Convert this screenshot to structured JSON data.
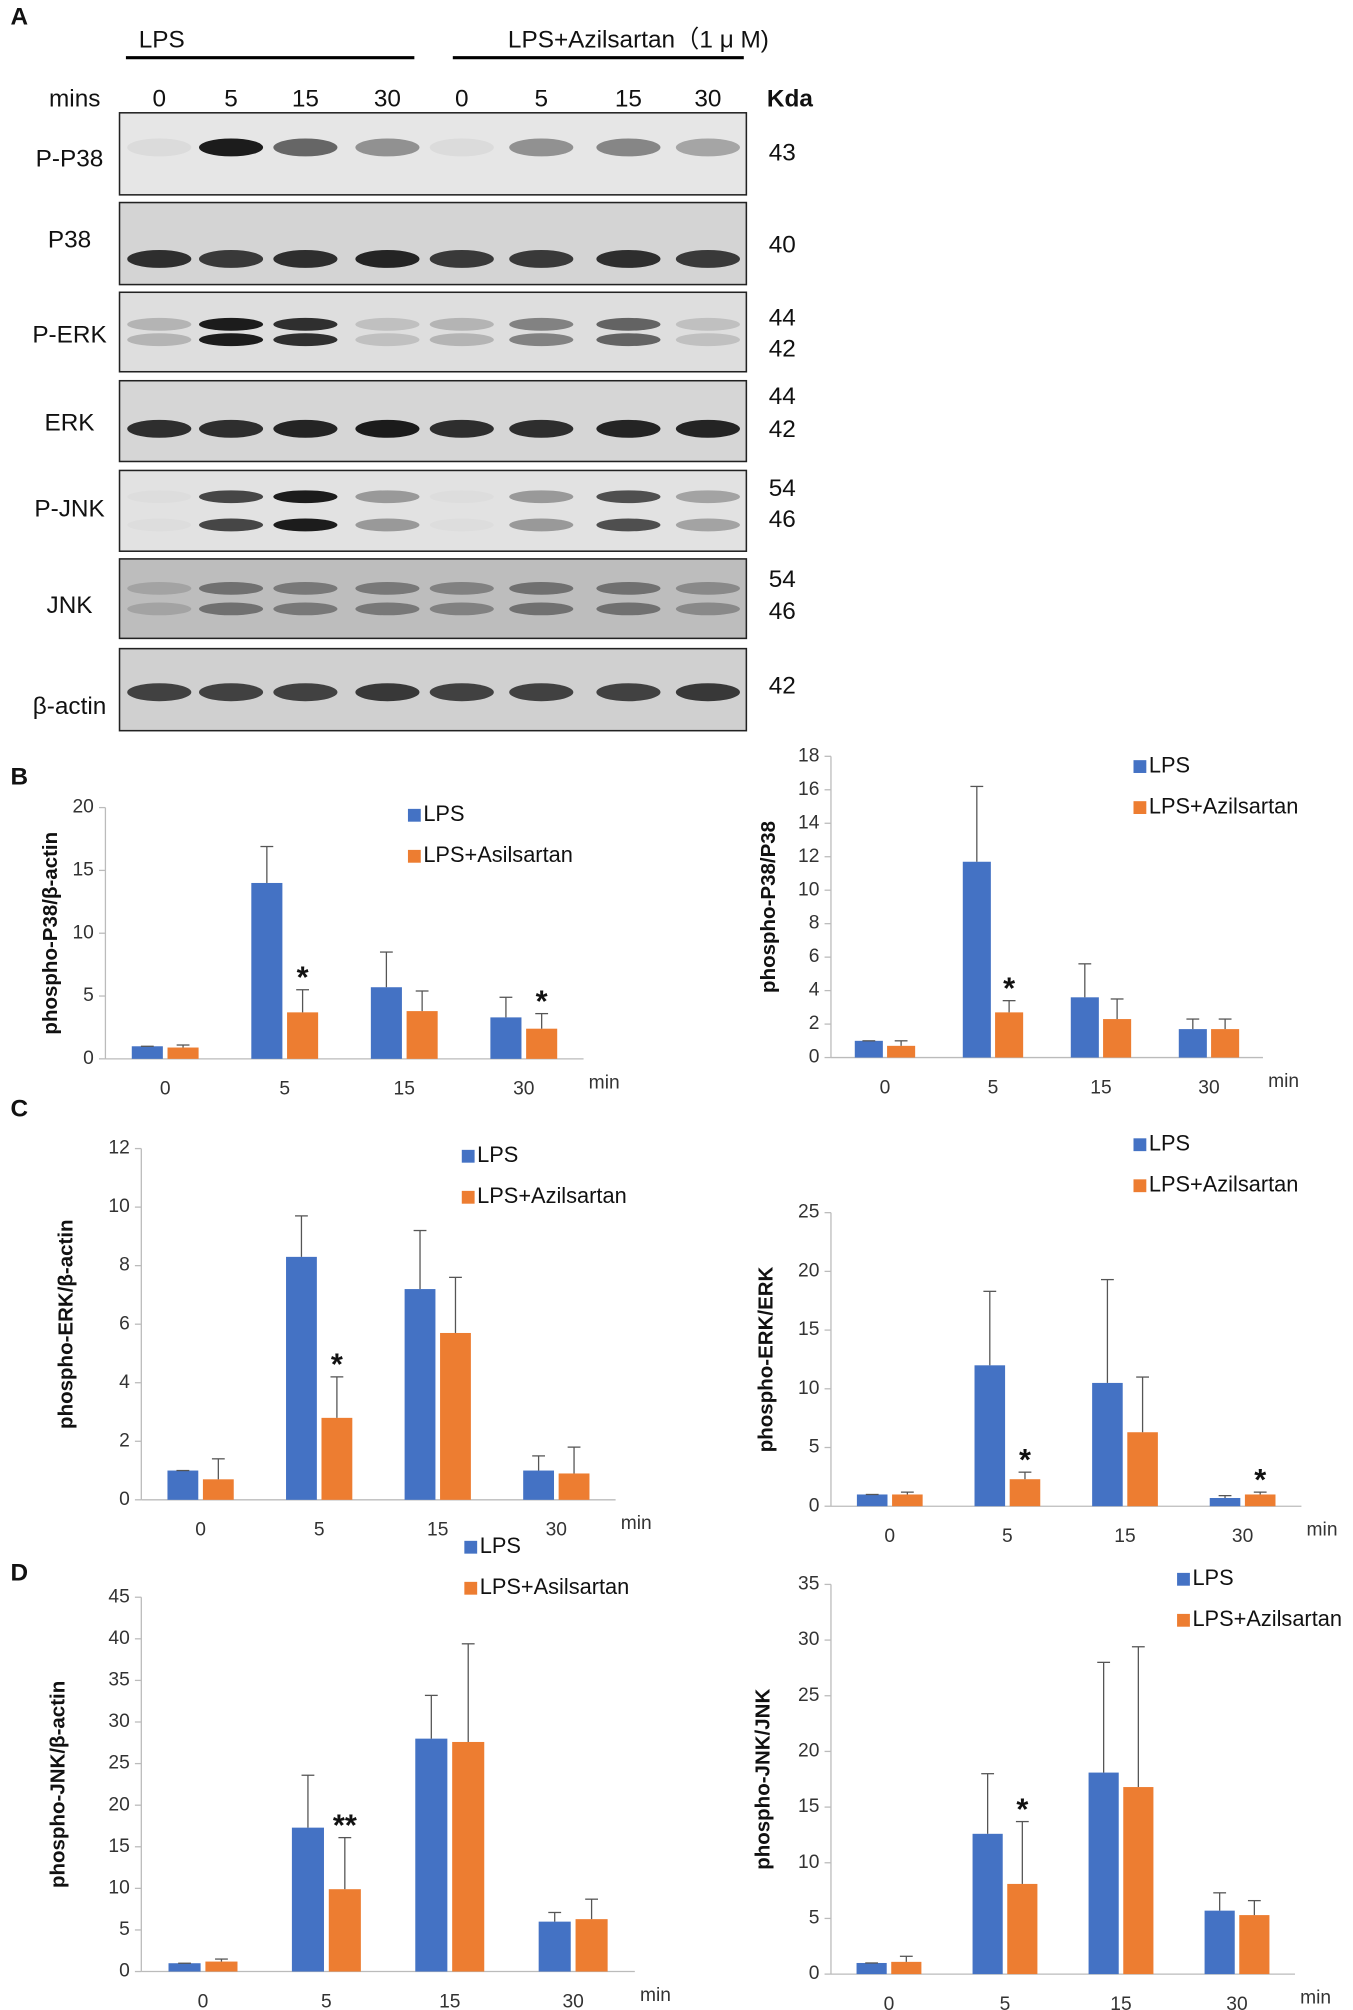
{
  "panel_labels": [
    "A",
    "B",
    "C",
    "D"
  ],
  "blot": {
    "groups": [
      "LPS",
      "LPS+Azilsartan（1 μ M)"
    ],
    "time_label": "mins",
    "times": [
      0,
      5,
      15,
      30,
      0,
      5,
      15,
      30
    ],
    "kda_label": "Kda",
    "rows": [
      {
        "name": "P-P38",
        "kda": [
          43
        ]
      },
      {
        "name": "P38",
        "kda": [
          40
        ]
      },
      {
        "name": "P-ERK",
        "kda": [
          44,
          42
        ]
      },
      {
        "name": "ERK",
        "kda": [
          44,
          42
        ]
      },
      {
        "name": "P-JNK",
        "kda": [
          54,
          46
        ]
      },
      {
        "name": "JNK",
        "kda": [
          54,
          46
        ]
      },
      {
        "name": "β-actin",
        "kda": [
          42
        ]
      }
    ]
  },
  "chart_data": [
    {
      "type": "bar",
      "y_label": "phospho-P38/β-actin",
      "x_label": "min",
      "categories": [
        0,
        5,
        15,
        30
      ],
      "ylim": [
        0,
        20
      ],
      "yticks": [
        0,
        5,
        10,
        15,
        20
      ],
      "series": [
        {
          "name": "LPS",
          "color": "#4472c4",
          "values": [
            1.0,
            14.0,
            5.7,
            3.3
          ],
          "errors": [
            0,
            2.9,
            2.8,
            1.6
          ]
        },
        {
          "name": "LPS+Asilsartan",
          "color": "#ed7d31",
          "values": [
            0.9,
            3.7,
            3.8,
            2.4
          ],
          "errors": [
            0.2,
            1.8,
            1.6,
            1.2
          ],
          "annotations": [
            null,
            "*",
            null,
            "*"
          ]
        }
      ]
    },
    {
      "type": "bar",
      "y_label": "phospho-P38/P38",
      "x_label": "min",
      "categories": [
        0,
        5,
        15,
        30
      ],
      "ylim": [
        0,
        18
      ],
      "yticks": [
        0,
        2,
        4,
        6,
        8,
        10,
        12,
        14,
        16,
        18
      ],
      "series": [
        {
          "name": "LPS",
          "color": "#4472c4",
          "values": [
            1.0,
            11.7,
            3.6,
            1.7
          ],
          "errors": [
            0,
            4.5,
            2.0,
            0.6
          ]
        },
        {
          "name": "LPS+Azilsartan",
          "color": "#ed7d31",
          "values": [
            0.7,
            2.7,
            2.3,
            1.7
          ],
          "errors": [
            0.3,
            0.7,
            1.2,
            0.6
          ],
          "annotations": [
            null,
            "*",
            null,
            null
          ]
        }
      ]
    },
    {
      "type": "bar",
      "y_label": "phospho-ERK/β-actin",
      "x_label": "min",
      "categories": [
        0,
        5,
        15,
        30
      ],
      "ylim": [
        0,
        12
      ],
      "yticks": [
        0,
        2,
        4,
        6,
        8,
        10,
        12
      ],
      "series": [
        {
          "name": "LPS",
          "color": "#4472c4",
          "values": [
            1.0,
            8.3,
            7.2,
            1.0
          ],
          "errors": [
            0,
            1.4,
            2.0,
            0.5
          ]
        },
        {
          "name": "LPS+Azilsartan",
          "color": "#ed7d31",
          "values": [
            0.7,
            2.8,
            5.7,
            0.9
          ],
          "errors": [
            0.7,
            1.4,
            1.9,
            0.9
          ],
          "annotations": [
            null,
            "*",
            null,
            null
          ]
        }
      ]
    },
    {
      "type": "bar",
      "y_label": "phospho-ERK/ERK",
      "x_label": "min",
      "categories": [
        0,
        5,
        15,
        30
      ],
      "ylim": [
        0,
        25
      ],
      "yticks": [
        0,
        5,
        10,
        15,
        20,
        25
      ],
      "series": [
        {
          "name": "LPS",
          "color": "#4472c4",
          "values": [
            1.0,
            12.0,
            10.5,
            0.7
          ],
          "errors": [
            0,
            6.3,
            8.8,
            0.2
          ]
        },
        {
          "name": "LPS+Azilsartan",
          "color": "#ed7d31",
          "values": [
            1.0,
            2.3,
            6.3,
            1.0
          ],
          "errors": [
            0.2,
            0.6,
            4.7,
            0.2
          ],
          "annotations": [
            null,
            "*",
            null,
            "*"
          ]
        }
      ]
    },
    {
      "type": "bar",
      "y_label": "phospho-JNK/β-actin",
      "x_label": "min",
      "categories": [
        0,
        5,
        15,
        30
      ],
      "ylim": [
        0,
        45
      ],
      "yticks": [
        0,
        5,
        10,
        15,
        20,
        25,
        30,
        35,
        40,
        45
      ],
      "series": [
        {
          "name": "LPS",
          "color": "#4472c4",
          "values": [
            1.0,
            17.3,
            28.0,
            6.0
          ],
          "errors": [
            0,
            6.3,
            5.2,
            1.1
          ]
        },
        {
          "name": "LPS+Asilsartan",
          "color": "#ed7d31",
          "values": [
            1.2,
            9.9,
            27.6,
            6.3
          ],
          "errors": [
            0.3,
            6.2,
            11.8,
            2.4
          ],
          "annotations": [
            null,
            "**",
            null,
            null
          ]
        }
      ]
    },
    {
      "type": "bar",
      "y_label": "phospho-JNK/JNK",
      "x_label": "min",
      "categories": [
        0,
        5,
        15,
        30
      ],
      "ylim": [
        0,
        35
      ],
      "yticks": [
        0,
        5,
        10,
        15,
        20,
        25,
        30,
        35
      ],
      "series": [
        {
          "name": "LPS",
          "color": "#4472c4",
          "values": [
            1.0,
            12.6,
            18.1,
            5.7
          ],
          "errors": [
            0,
            5.4,
            9.9,
            1.6
          ]
        },
        {
          "name": "LPS+Azilsartan",
          "color": "#ed7d31",
          "values": [
            1.1,
            8.1,
            16.8,
            5.3
          ],
          "errors": [
            0.5,
            5.6,
            12.6,
            1.3
          ],
          "annotations": [
            null,
            "*",
            null,
            null
          ]
        }
      ]
    }
  ]
}
